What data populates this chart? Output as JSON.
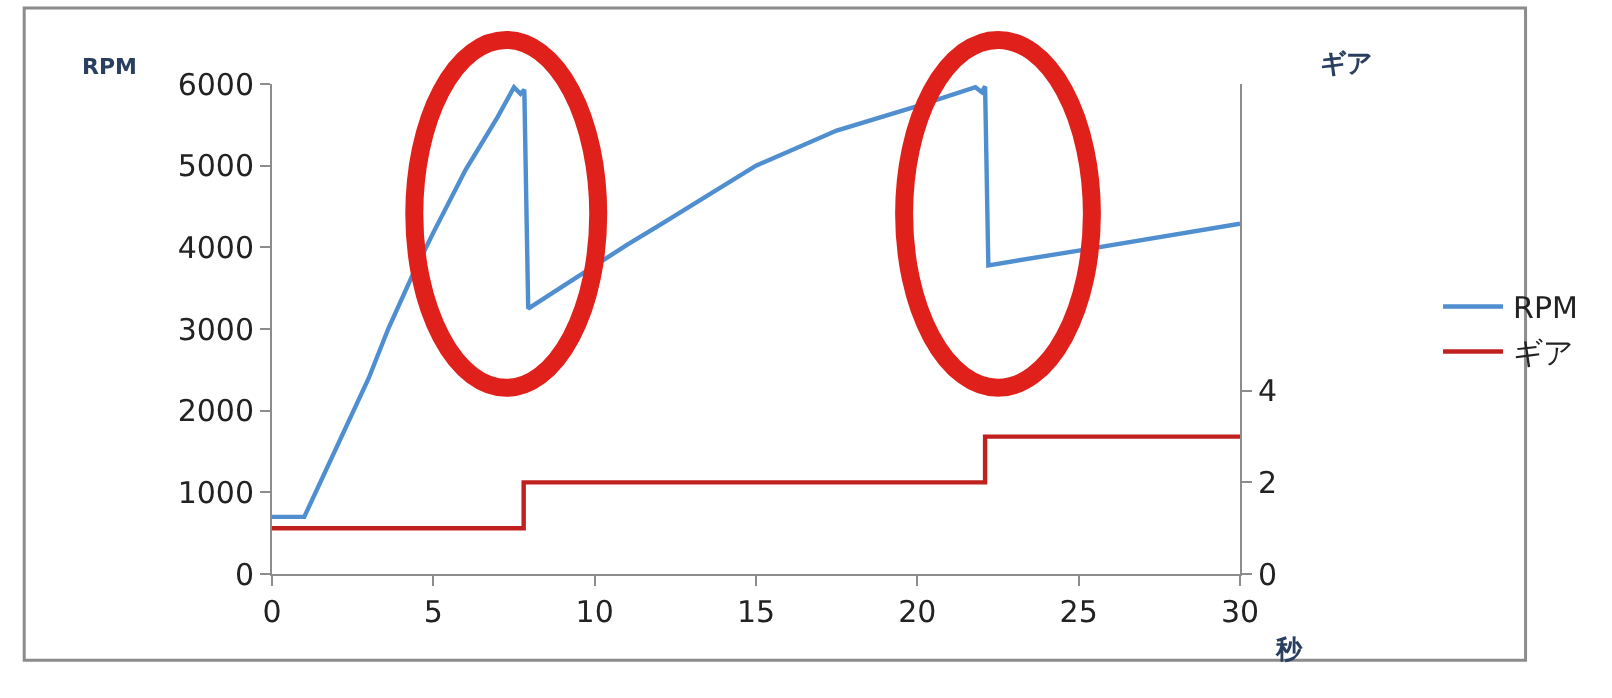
{
  "chart_data": {
    "type": "line",
    "ylabel": "RPM",
    "y2label": "ギア",
    "xlabel": "秒",
    "xlim": [
      0,
      30
    ],
    "xticks": [
      0,
      5,
      10,
      15,
      20,
      25,
      30
    ],
    "ylim": [
      0,
      6000
    ],
    "yticks": [
      0,
      1000,
      2000,
      3000,
      4000,
      5000,
      6000
    ],
    "y2lim": [
      0,
      10.7
    ],
    "y2ticks": [
      0,
      2,
      4
    ],
    "series": [
      {
        "name": "RPM",
        "color": "#4f8fd0",
        "x": [
          0,
          1,
          2,
          3,
          3.6,
          4.4,
          5,
          6,
          7,
          7.5,
          7.7,
          7.82,
          7.94,
          11,
          12,
          15,
          17.5,
          20,
          21.8,
          22,
          22.1,
          22.2,
          25,
          30
        ],
        "values": [
          700,
          700,
          1550,
          2400,
          3000,
          3700,
          4180,
          4950,
          5600,
          5960,
          5880,
          5930,
          3250,
          4030,
          4270,
          5000,
          5430,
          5730,
          5960,
          5900,
          5970,
          3780,
          3960,
          4290
        ]
      },
      {
        "name": "ギア",
        "type": "step",
        "axis": "y2",
        "color": "#c0201e",
        "x": [
          0,
          7.8,
          22.1,
          30
        ],
        "values": [
          1,
          2,
          3,
          3
        ]
      }
    ],
    "legend": "right"
  }
}
